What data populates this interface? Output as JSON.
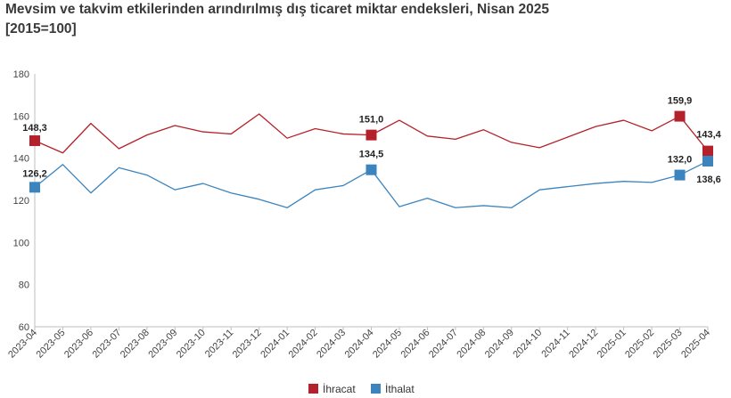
{
  "chart_data": {
    "type": "line",
    "title": "Mevsim ve takvim etkilerinden arındırılmış dış ticaret miktar endeksleri, Nisan 2025",
    "subtitle": "[2015=100]",
    "xlabel": "",
    "ylabel": "",
    "ylim": [
      60,
      180
    ],
    "yticks": [
      60,
      80,
      100,
      120,
      140,
      160,
      180
    ],
    "grid": false,
    "legend_position": "bottom",
    "categories": [
      "2023-04",
      "2023-05",
      "2023-06",
      "2023-07",
      "2023-08",
      "2023-09",
      "2023-10",
      "2023-11",
      "2023-12",
      "2024-01",
      "2024-02",
      "2024-03",
      "2024-04",
      "2024-05",
      "2024-06",
      "2024-07",
      "2024-08",
      "2024-09",
      "2024-10",
      "2024-11",
      "2024-12",
      "2025-01",
      "2025-02",
      "2025-03",
      "2025-04"
    ],
    "series": [
      {
        "name": "İhracat",
        "color": "#b5212a",
        "values": [
          148.3,
          142.5,
          156.5,
          144.5,
          151,
          155.5,
          152.5,
          151.5,
          161,
          149.5,
          154,
          151.5,
          151.0,
          158,
          150.5,
          149,
          153.5,
          147.5,
          145,
          150,
          155,
          158,
          153,
          159.9,
          143.4
        ],
        "markers": [
          {
            "index": 0,
            "label": "148,3"
          },
          {
            "index": 12,
            "label": "151,0"
          },
          {
            "index": 23,
            "label": "159,9"
          },
          {
            "index": 24,
            "label": "143,4"
          }
        ]
      },
      {
        "name": "İthalat",
        "color": "#3b84be",
        "values": [
          126.2,
          137,
          123.5,
          135.5,
          132,
          125,
          128,
          123.5,
          120.5,
          116.5,
          125,
          127,
          134.5,
          117,
          121,
          116.5,
          117.5,
          116.5,
          125,
          126.5,
          128,
          129,
          128.5,
          132.0,
          138.6
        ],
        "markers": [
          {
            "index": 0,
            "label": "126,2"
          },
          {
            "index": 12,
            "label": "134,5"
          },
          {
            "index": 23,
            "label": "132,0"
          },
          {
            "index": 24,
            "label": "138,6"
          }
        ]
      }
    ]
  }
}
